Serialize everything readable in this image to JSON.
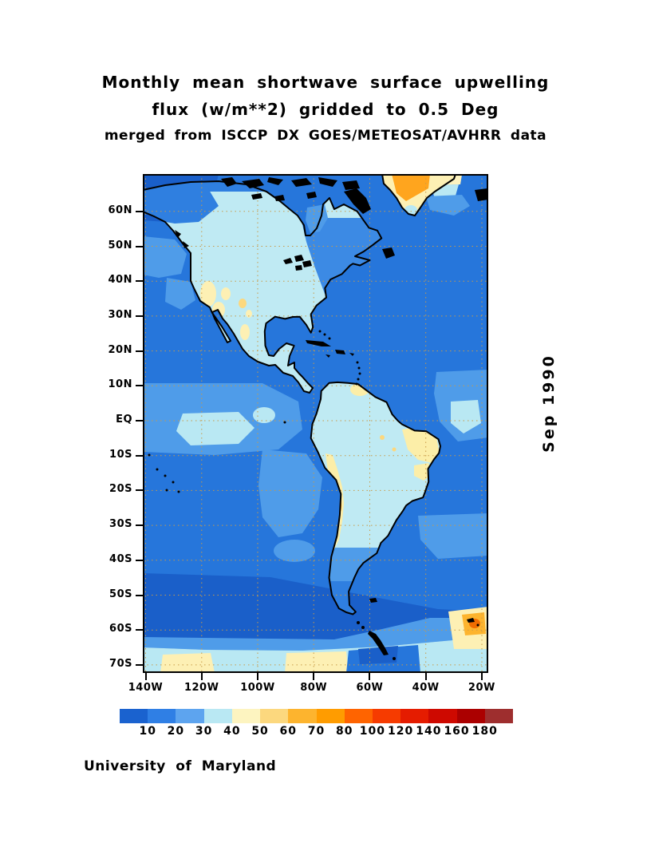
{
  "title": {
    "line1": "Monthly mean shortwave surface upwelling",
    "line2": "flux (w/m**2) gridded to 0.5 Deg",
    "line3": "merged from ISCCP DX GOES/METEOSAT/AVHRR data"
  },
  "date_label": "Sep 1990",
  "credit": "University of Maryland",
  "map": {
    "lat_labels": [
      "60N",
      "50N",
      "40N",
      "30N",
      "20N",
      "10N",
      "EQ",
      "10S",
      "20S",
      "30S",
      "40S",
      "50S",
      "60S",
      "70S"
    ],
    "lon_labels": [
      "140W",
      "120W",
      "100W",
      "80W",
      "60W",
      "40W",
      "20W"
    ],
    "grid_color": "#c89a48",
    "frame_color": "#000000",
    "ocean_base_color": "#2676db"
  },
  "colorbar": {
    "labels": [
      "10",
      "20",
      "30",
      "40",
      "50",
      "60",
      "70",
      "80",
      "100",
      "120",
      "140",
      "160",
      "180"
    ],
    "colors": [
      "#1a62cf",
      "#2f7fe5",
      "#5da4ef",
      "#b9e8f3",
      "#fdf4c0",
      "#fcd87e",
      "#fdb42e",
      "#ff9c00",
      "#ff6400",
      "#f63b00",
      "#e51c00",
      "#ce0900",
      "#ab0000",
      "#9e2e2e"
    ]
  },
  "chart_data": {
    "type": "heatmap",
    "title": "Monthly mean shortwave surface upwelling flux (w/m**2) gridded to 0.5 Deg",
    "subtitle": "merged from ISCCP DX GOES/METEOSAT/AVHRR data",
    "date": "Sep 1990",
    "units": "w/m**2",
    "region": "Americas / eastern Pacific / western Atlantic",
    "lon_range_deg": [
      -141,
      -18
    ],
    "lat_range_deg": [
      -73,
      71
    ],
    "x_ticks": [
      "140W",
      "120W",
      "100W",
      "80W",
      "60W",
      "40W",
      "20W"
    ],
    "y_ticks": [
      "60N",
      "50N",
      "40N",
      "30N",
      "20N",
      "10N",
      "EQ",
      "10S",
      "20S",
      "30S",
      "40S",
      "50S",
      "60S",
      "70S"
    ],
    "grid": "dashed graticule every 10 deg latitude and 20 deg longitude",
    "legend_position": "horizontal colorbar below map",
    "colorbar_boundaries": [
      10,
      20,
      30,
      40,
      50,
      60,
      70,
      80,
      100,
      120,
      140,
      160,
      180
    ],
    "colorbar_colors": [
      "#1a62cf",
      "#2f7fe5",
      "#5da4ef",
      "#b9e8f3",
      "#fdf4c0",
      "#fcd87e",
      "#fdb42e",
      "#ff9c00",
      "#ff6400",
      "#f63b00",
      "#e51c00",
      "#ce0900",
      "#ab0000",
      "#9e2e2e"
    ],
    "features": [
      {
        "region": "open ocean (most of domain)",
        "value_wm2": "20-30"
      },
      {
        "region": "high-latitude Southern Ocean 45S-62S",
        "value_wm2": "10-20"
      },
      {
        "region": "equatorial Pacific patches near 130W-110W",
        "value_wm2": "30-40"
      },
      {
        "region": "central/western North America land",
        "value_wm2": "30-40"
      },
      {
        "region": "US Southwest / Great Basin / NW Mexico",
        "value_wm2": "40-60"
      },
      {
        "region": "eastern North America land",
        "value_wm2": "20-30"
      },
      {
        "region": "Amazon basin / most of South America",
        "value_wm2": "30-40"
      },
      {
        "region": "northeast Brazil",
        "value_wm2": "40-60"
      },
      {
        "region": "Andes (Altiplano)",
        "value_wm2": "50-80"
      },
      {
        "region": "southern Greenland interior",
        "value_wm2": "60-80"
      },
      {
        "region": "Antarctic coastal band 62S-73S",
        "value_wm2": "30-60"
      },
      {
        "region": "South Georgia area near 35W-20W, 55S-60S",
        "value_wm2": "40-70"
      }
    ]
  }
}
